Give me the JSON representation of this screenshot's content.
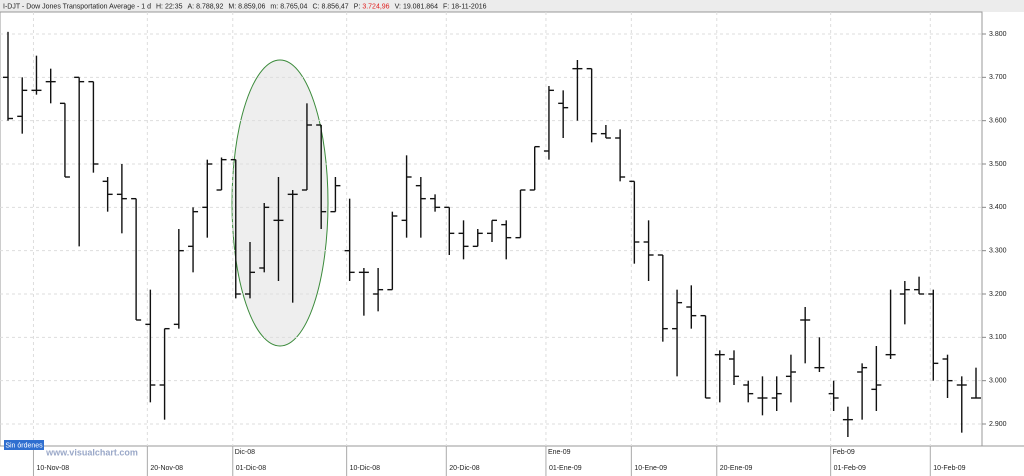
{
  "header": {
    "symbol": "I-DJT - Dow Jones Transportation Average - 1 d",
    "fields": [
      {
        "label": "H:",
        "value": "22:35"
      },
      {
        "label": "A:",
        "value": "8.788,92"
      },
      {
        "label": "M:",
        "value": "8.859,06"
      },
      {
        "label": "m:",
        "value": "8.765,04"
      },
      {
        "label": "C:",
        "value": "8.856,47"
      },
      {
        "label": "P:",
        "value": "3.724,96",
        "color": "#e02020"
      },
      {
        "label": "V:",
        "value": "19.081.864"
      },
      {
        "label": "F:",
        "value": "18-11-2016"
      }
    ]
  },
  "button": "Sin órdenes",
  "watermark": "www.visualchart.com",
  "chart_data": {
    "type": "ohlc",
    "color": "#111111",
    "grid": true,
    "annotation_color": "#3a8a3a",
    "categories": [
      null,
      null,
      "10-Nov-08",
      null,
      null,
      null,
      null,
      null,
      null,
      null,
      "20-Nov-08",
      null,
      null,
      null,
      null,
      null,
      "01-Dic-08",
      null,
      null,
      null,
      null,
      null,
      null,
      null,
      "10-Dic-08",
      null,
      null,
      null,
      null,
      null,
      null,
      "20-Dic-08",
      null,
      null,
      null,
      null,
      null,
      null,
      "01-Ene-09",
      null,
      null,
      null,
      null,
      null,
      "10-Ene-09",
      null,
      null,
      null,
      null,
      null,
      "20-Ene-09",
      null,
      null,
      null,
      null,
      null,
      null,
      null,
      "01-Feb-09",
      null,
      null,
      null,
      null,
      null,
      null,
      "10-Feb-09",
      null,
      null,
      null
    ],
    "months": [
      "Dic-08",
      "Ene-09",
      "Feb-09"
    ],
    "open": [
      3700,
      3610,
      3670,
      3690,
      3640,
      3700,
      3690,
      3460,
      3430,
      3420,
      3130,
      2990,
      3130,
      3310,
      3400,
      3440,
      3510,
      3200,
      3260,
      3370,
      3430,
      3440,
      3590,
      3390,
      3300,
      3250,
      3200,
      3210,
      3370,
      3450,
      3420,
      3400,
      3340,
      3310,
      3340,
      3360,
      3330,
      3440,
      3530,
      3640,
      3720,
      3720,
      3570,
      3560,
      3460,
      3320,
      3290,
      3120,
      3170,
      3150,
      3060,
      3050,
      2990,
      2960,
      2960,
      3010,
      3140,
      3030,
      2970,
      2910,
      3020,
      2980,
      3060,
      3200,
      3210,
      3200,
      3050,
      2990,
      2960
    ],
    "high": [
      3805,
      3700,
      3750,
      3720,
      3640,
      3700,
      3690,
      3470,
      3500,
      3420,
      3210,
      3120,
      3350,
      3400,
      3510,
      3515,
      3510,
      3320,
      3410,
      3470,
      3440,
      3640,
      3590,
      3470,
      3420,
      3260,
      3260,
      3390,
      3520,
      3470,
      3430,
      3400,
      3370,
      3350,
      3370,
      3370,
      3440,
      3540,
      3680,
      3670,
      3740,
      3720,
      3590,
      3580,
      3460,
      3370,
      3290,
      3210,
      3220,
      3150,
      3070,
      3070,
      3000,
      3010,
      3010,
      3060,
      3170,
      3100,
      3000,
      2940,
      3040,
      3080,
      3210,
      3230,
      3240,
      3210,
      3060,
      3010,
      3030
    ],
    "low": [
      3600,
      3570,
      3660,
      3640,
      3470,
      3310,
      3480,
      3390,
      3340,
      3140,
      2950,
      2910,
      3120,
      3250,
      3330,
      3440,
      3190,
      3190,
      3250,
      3230,
      3180,
      3440,
      3350,
      3390,
      3230,
      3150,
      3160,
      3210,
      3330,
      3330,
      3390,
      3290,
      3280,
      3310,
      3320,
      3280,
      3330,
      3440,
      3510,
      3560,
      3600,
      3550,
      3560,
      3460,
      3270,
      3230,
      3090,
      3010,
      3120,
      2960,
      2950,
      2990,
      2950,
      2920,
      2930,
      2950,
      3040,
      3020,
      2930,
      2870,
      2910,
      2930,
      3050,
      3130,
      3200,
      3000,
      2960,
      2880,
      2960
    ],
    "close": [
      3605,
      3670,
      3670,
      3690,
      3470,
      3690,
      3500,
      3430,
      3420,
      3140,
      2990,
      3120,
      3300,
      3390,
      3500,
      3510,
      3200,
      3250,
      3400,
      3370,
      3430,
      3590,
      3390,
      3450,
      3250,
      3250,
      3210,
      3380,
      3470,
      3420,
      3400,
      3340,
      3310,
      3340,
      3370,
      3330,
      3440,
      3540,
      3670,
      3630,
      3720,
      3570,
      3560,
      3470,
      3320,
      3290,
      3120,
      3180,
      3150,
      2960,
      3060,
      3010,
      2970,
      2960,
      2970,
      3020,
      3140,
      3030,
      2960,
      2910,
      3030,
      2990,
      3060,
      3210,
      3200,
      3040,
      3000,
      2990,
      2960
    ],
    "ylim": [
      2850,
      3830
    ],
    "yticks": [
      {
        "value": 2900,
        "label": "2.900"
      },
      {
        "value": 3000,
        "label": "3.000"
      },
      {
        "value": 3100,
        "label": "3.100"
      },
      {
        "value": 3200,
        "label": "3.200"
      },
      {
        "value": 3300,
        "label": "3.300"
      },
      {
        "value": 3400,
        "label": "3.400"
      },
      {
        "value": 3500,
        "label": "3.500"
      },
      {
        "value": 3600,
        "label": "3.600"
      },
      {
        "value": 3700,
        "label": "3.700"
      },
      {
        "value": 3800,
        "label": "3.800"
      }
    ]
  }
}
